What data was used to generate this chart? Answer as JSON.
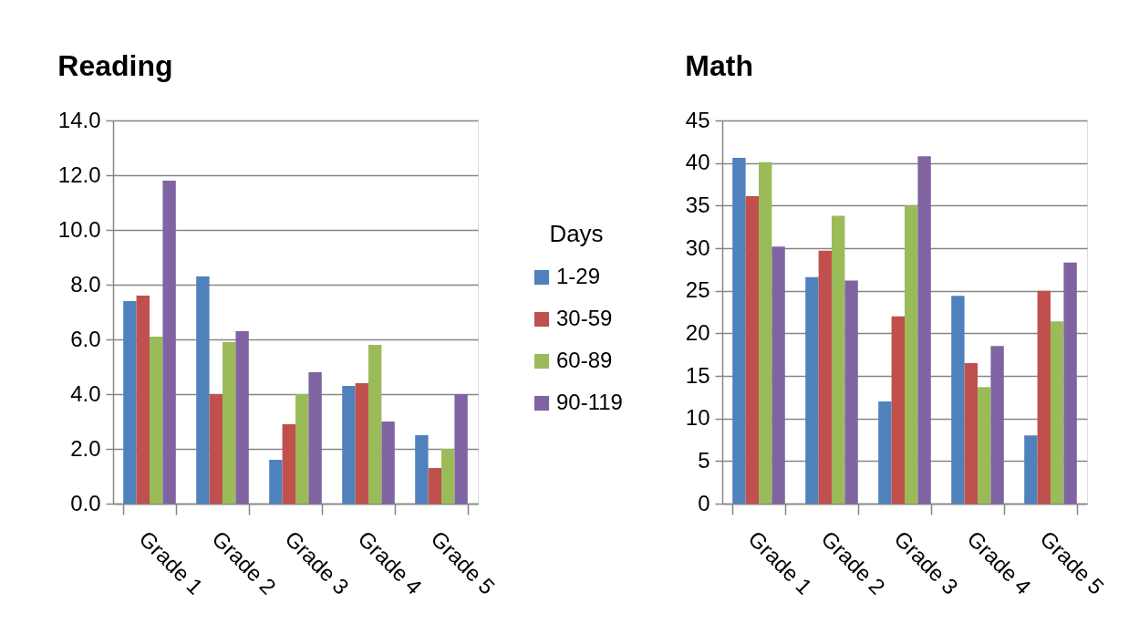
{
  "chart_data": [
    {
      "type": "bar",
      "title": "Reading",
      "categories": [
        "Grade 1",
        "Grade 2",
        "Grade 3",
        "Grade 4",
        "Grade 5"
      ],
      "series": [
        {
          "name": "1-29",
          "color": "#4f81bd",
          "values": [
            7.4,
            8.3,
            1.6,
            4.3,
            2.5
          ]
        },
        {
          "name": "30-59",
          "color": "#c0504d",
          "values": [
            7.6,
            4.0,
            2.9,
            4.4,
            1.3
          ]
        },
        {
          "name": "60-89",
          "color": "#9bbb59",
          "values": [
            6.1,
            5.9,
            4.0,
            5.8,
            2.0
          ]
        },
        {
          "name": "90-119",
          "color": "#8064a2",
          "values": [
            11.8,
            6.3,
            4.8,
            3.0,
            4.0
          ]
        }
      ],
      "ylim": [
        0,
        14
      ],
      "yticks": [
        {
          "value": 0,
          "label": "0.0"
        },
        {
          "value": 2,
          "label": "2.0"
        },
        {
          "value": 4,
          "label": "4.0"
        },
        {
          "value": 6,
          "label": "6.0"
        },
        {
          "value": 8,
          "label": "8.0"
        },
        {
          "value": 10,
          "label": "10.0"
        },
        {
          "value": 12,
          "label": "12.0"
        },
        {
          "value": 14,
          "label": "14.0"
        }
      ],
      "grid": "y",
      "legend": "right",
      "legend_title": "Days"
    },
    {
      "type": "bar",
      "title": "Math",
      "categories": [
        "Grade 1",
        "Grade 2",
        "Grade 3",
        "Grade 4",
        "Grade 5"
      ],
      "series": [
        {
          "color": "#4f81bd",
          "values": [
            40.6,
            26.6,
            12.0,
            24.4,
            8.0
          ]
        },
        {
          "color": "#c0504d",
          "values": [
            36.1,
            29.7,
            22.0,
            16.5,
            25.0
          ]
        },
        {
          "color": "#9bbb59",
          "values": [
            40.1,
            33.8,
            35.0,
            13.7,
            21.4
          ]
        },
        {
          "color": "#8064a2",
          "values": [
            30.2,
            26.2,
            40.8,
            18.5,
            28.3
          ]
        }
      ],
      "ylim": [
        0,
        45
      ],
      "yticks": [
        0,
        5,
        10,
        15,
        20,
        25,
        30,
        35,
        40,
        45
      ],
      "grid": "y",
      "legend": false
    }
  ]
}
